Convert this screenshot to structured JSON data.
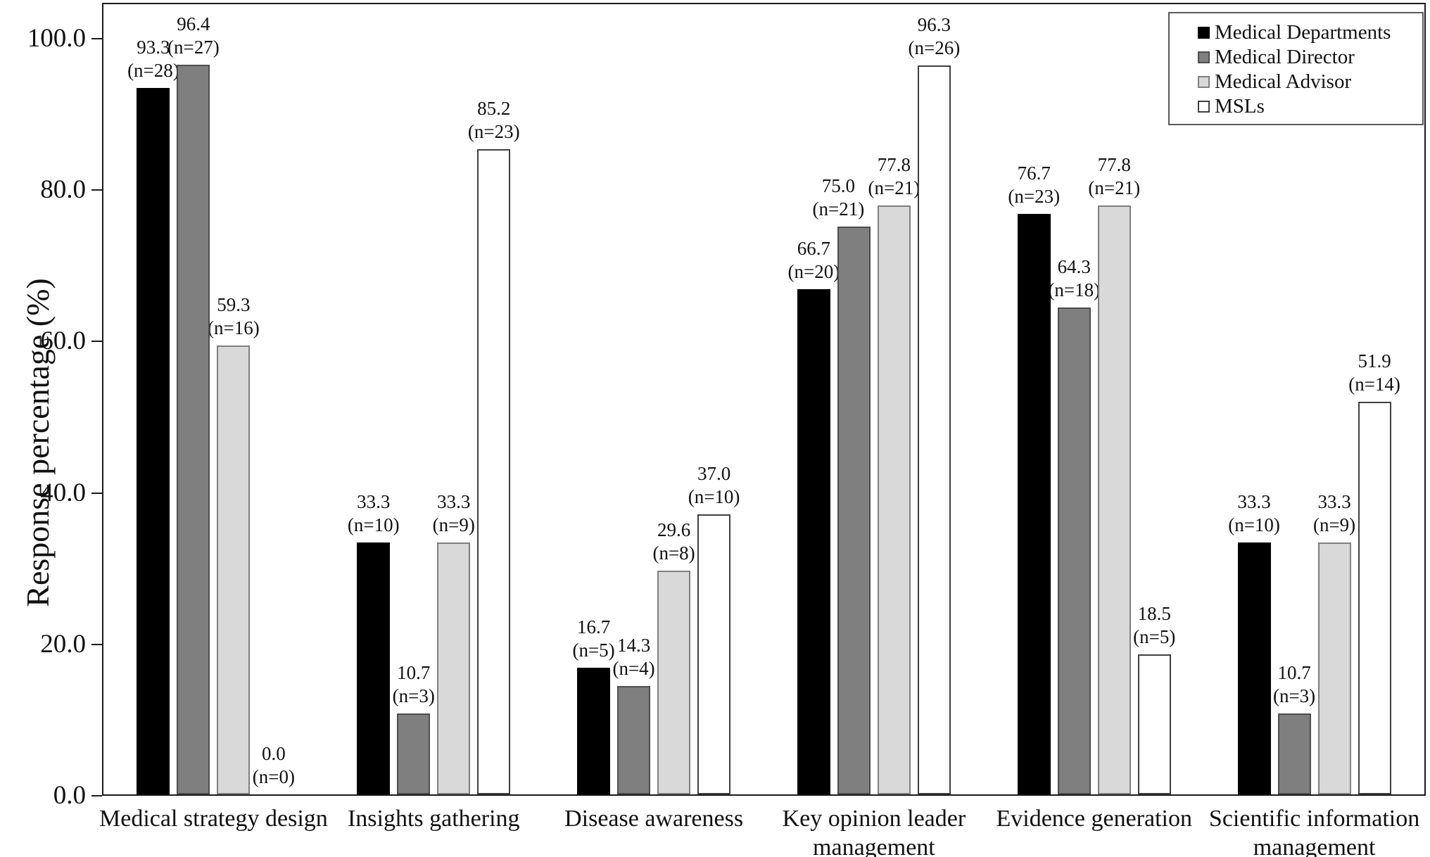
{
  "chart_data": {
    "type": "bar",
    "title": "",
    "xlabel": "",
    "ylabel": "Response percentage (%)",
    "ylim": [
      0,
      100
    ],
    "yticks": [
      "0.0",
      "20.0",
      "40.0",
      "60.0",
      "80.0",
      "100.0"
    ],
    "grid": false,
    "legend_position": "top-right",
    "data_label_format": "value then (n=count)",
    "categories": [
      "Medical strategy design",
      "Insights gathering",
      "Disease awareness",
      "Key opinion leader\nmanagement",
      "Evidence generation",
      "Scientific information\nmanagement"
    ],
    "series": [
      {
        "name": "Medical Departments",
        "color": "#000000",
        "border_color": "#000000",
        "values": [
          93.3,
          33.3,
          16.7,
          66.7,
          76.7,
          33.3
        ],
        "n": [
          28,
          10,
          5,
          20,
          23,
          10
        ]
      },
      {
        "name": "Medical Director",
        "color": "#7f7f7f",
        "border_color": "#4d4d4d",
        "values": [
          96.4,
          10.7,
          14.3,
          75.0,
          64.3,
          10.7
        ],
        "n": [
          27,
          3,
          4,
          21,
          18,
          3
        ]
      },
      {
        "name": "Medical Advisor",
        "color": "#d9d9d9",
        "border_color": "#7f7f7f",
        "values": [
          59.3,
          33.3,
          29.6,
          77.8,
          77.8,
          33.3
        ],
        "n": [
          16,
          9,
          8,
          21,
          21,
          9
        ]
      },
      {
        "name": "MSLs",
        "color": "#ffffff",
        "border_color": "#404040",
        "values": [
          0.0,
          85.2,
          37.0,
          96.3,
          18.5,
          51.9
        ],
        "n": [
          0,
          23,
          10,
          26,
          5,
          14
        ]
      }
    ]
  }
}
